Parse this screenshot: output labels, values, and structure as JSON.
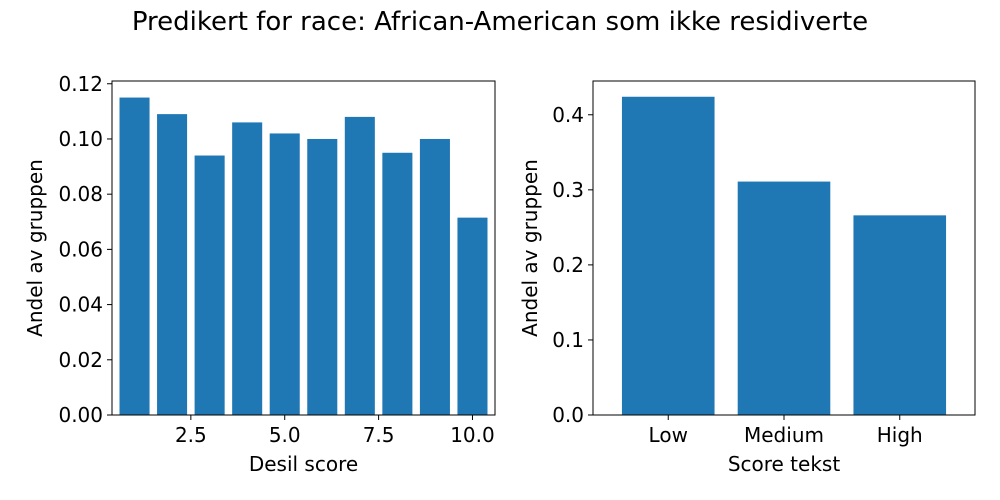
{
  "suptitle": "Predikert for race: African-American som ikke residiverte",
  "bar_color": "#1f77b4",
  "chart_data": [
    {
      "type": "bar",
      "x": [
        1,
        2,
        3,
        4,
        5,
        6,
        7,
        8,
        9,
        10
      ],
      "values": [
        0.115,
        0.109,
        0.094,
        0.106,
        0.102,
        0.1,
        0.108,
        0.095,
        0.1,
        0.0715
      ],
      "xlabel": "Desil score",
      "ylabel": "Andel av gruppen",
      "xlim": [
        0.4,
        10.6
      ],
      "ylim": [
        0,
        0.121
      ],
      "xticks": [
        2.5,
        5.0,
        7.5,
        10.0
      ],
      "xtick_labels": [
        "2.5",
        "5.0",
        "7.5",
        "10.0"
      ],
      "yticks": [
        0,
        0.02,
        0.04,
        0.06,
        0.08,
        0.1,
        0.12
      ],
      "ytick_labels": [
        "0.00",
        "0.02",
        "0.04",
        "0.06",
        "0.08",
        "0.10",
        "0.12"
      ],
      "grid": false
    },
    {
      "type": "bar",
      "categories": [
        "Low",
        "Medium",
        "High"
      ],
      "values": [
        0.424,
        0.311,
        0.266
      ],
      "xlabel": "Score tekst",
      "ylabel": "Andel av gruppen",
      "ylim": [
        0,
        0.445
      ],
      "yticks": [
        0,
        0.1,
        0.2,
        0.3,
        0.4
      ],
      "ytick_labels": [
        "0.0",
        "0.1",
        "0.2",
        "0.3",
        "0.4"
      ],
      "grid": false
    }
  ]
}
